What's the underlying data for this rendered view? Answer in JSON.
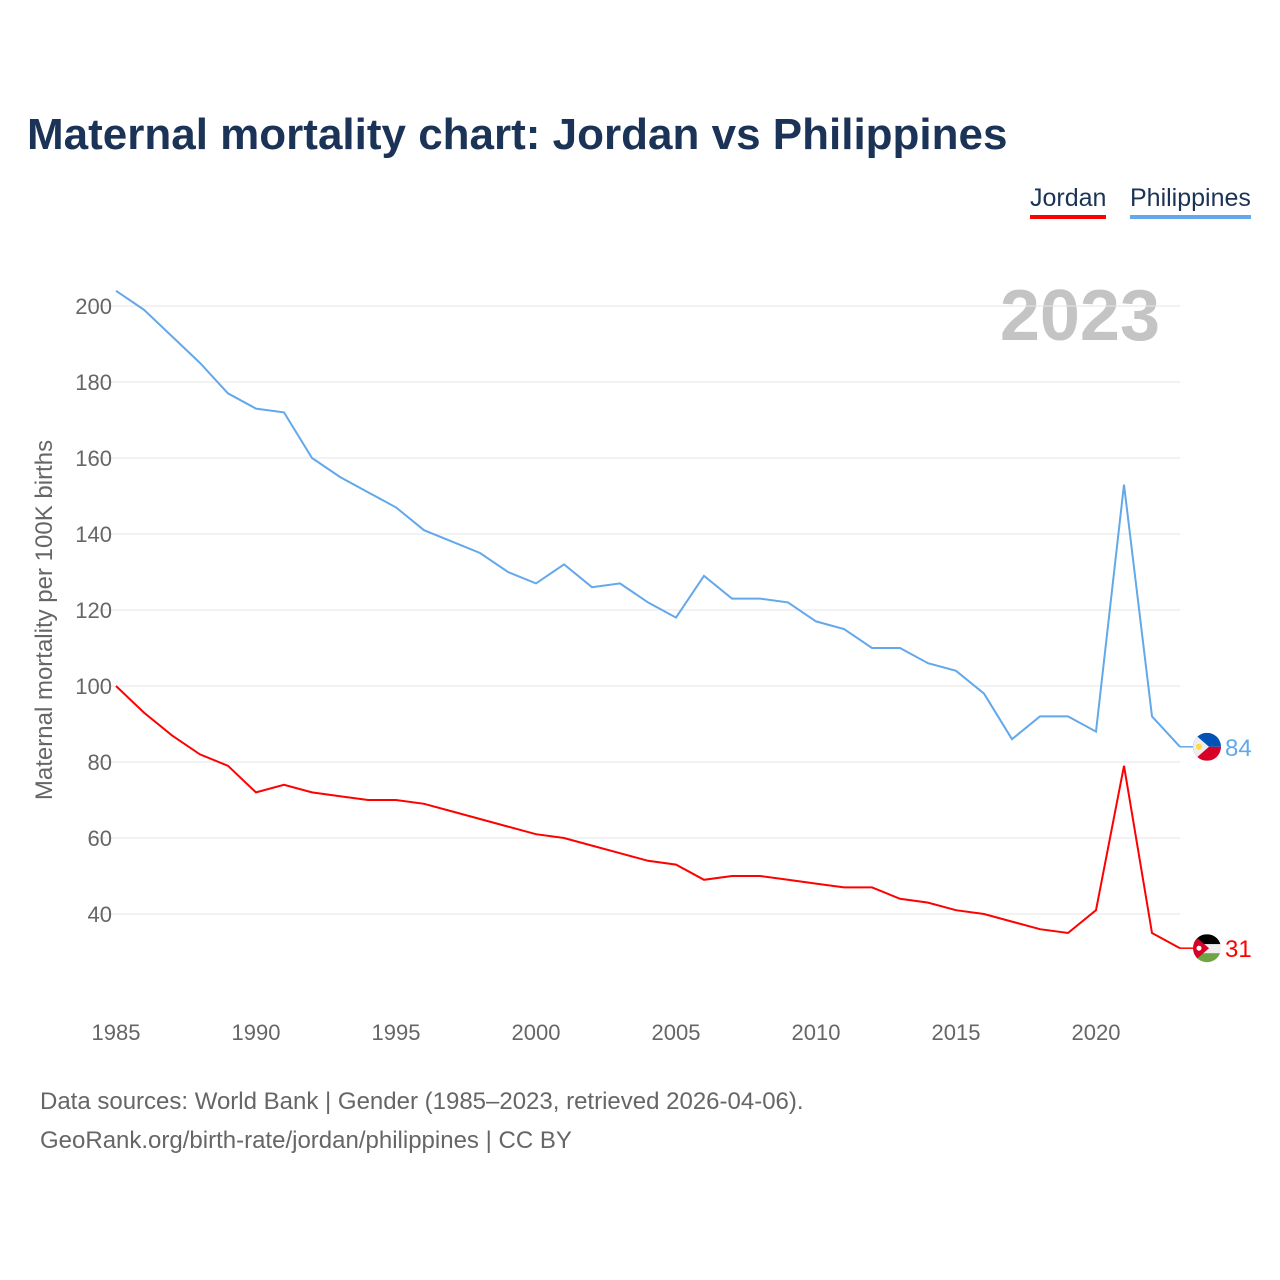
{
  "title": "Maternal mortality chart: Jordan vs Philippines",
  "legend": [
    "Jordan",
    "Philippines"
  ],
  "year_watermark": "2023",
  "footer": {
    "line1": "Data sources: World Bank | Gender (1985–2023, retrieved 2026-04-06).",
    "line2": "GeoRank.org/birth-rate/jordan/philippines | CC BY"
  },
  "chart_data": {
    "type": "line",
    "title": "Maternal mortality chart: Jordan vs Philippines",
    "xlabel": "",
    "ylabel": "Maternal mortality per 100K births",
    "xlim": [
      1985,
      2023
    ],
    "ylim": [
      20,
      205
    ],
    "xticks": [
      1985,
      1990,
      1995,
      2000,
      2005,
      2010,
      2015,
      2020
    ],
    "yticks": [
      40,
      60,
      80,
      100,
      120,
      140,
      160,
      180,
      200
    ],
    "grid": true,
    "legend_position": "top-right",
    "x": [
      1985,
      1986,
      1987,
      1988,
      1989,
      1990,
      1991,
      1992,
      1993,
      1994,
      1995,
      1996,
      1997,
      1998,
      1999,
      2000,
      2001,
      2002,
      2003,
      2004,
      2005,
      2006,
      2007,
      2008,
      2009,
      2010,
      2011,
      2012,
      2013,
      2014,
      2015,
      2016,
      2017,
      2018,
      2019,
      2020,
      2021,
      2022,
      2023
    ],
    "series": [
      {
        "name": "Jordan",
        "color": "#ff0000",
        "end_label": "31",
        "values": [
          100,
          93,
          87,
          82,
          79,
          72,
          74,
          72,
          71,
          70,
          70,
          69,
          67,
          65,
          63,
          61,
          60,
          58,
          56,
          54,
          53,
          49,
          50,
          50,
          49,
          48,
          47,
          47,
          44,
          43,
          41,
          40,
          38,
          36,
          35,
          41,
          79,
          35,
          31
        ]
      },
      {
        "name": "Philippines",
        "color": "#62a8ea",
        "end_label": "84",
        "values": [
          204,
          199,
          192,
          185,
          177,
          173,
          172,
          160,
          155,
          151,
          147,
          141,
          138,
          135,
          130,
          127,
          132,
          126,
          127,
          122,
          118,
          129,
          123,
          123,
          122,
          117,
          115,
          110,
          110,
          106,
          104,
          98,
          86,
          92,
          92,
          88,
          153,
          92,
          84
        ]
      }
    ]
  }
}
